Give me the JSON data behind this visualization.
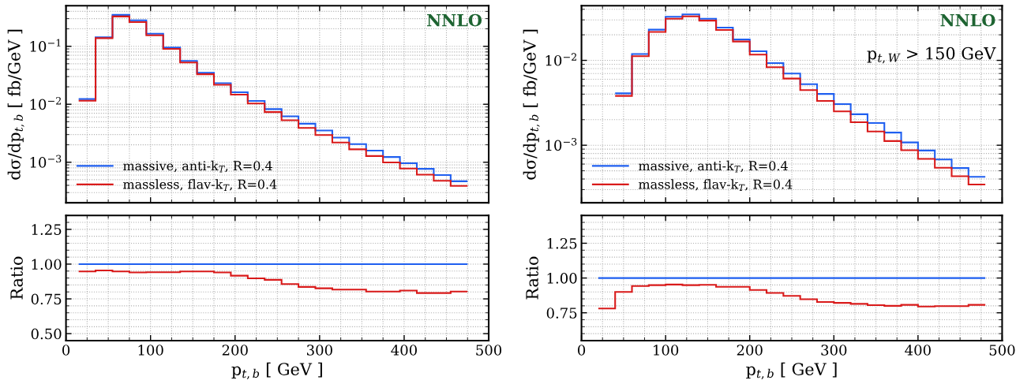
{
  "chart_data": [
    {
      "type": "histogram",
      "ylabel": "dσ/dp$_{t,b}$ [ fb/GeV ]",
      "annotations": [
        "NNLO"
      ],
      "log": "y",
      "grid": true,
      "legend": "bottom left",
      "tick_labels": "y",
      "bins": [
        15,
        35,
        55,
        75,
        95,
        115,
        135,
        155,
        175,
        195,
        215,
        235,
        255,
        275,
        295,
        315,
        335,
        355,
        375,
        395,
        415,
        435,
        455,
        475
      ],
      "xlim": [
        0,
        500
      ],
      "xticks": [
        0,
        100,
        200,
        300,
        400,
        500
      ],
      "ylim": [
        0.0002,
        0.5
      ],
      "yticks": [
        {
          "value": 0.001,
          "label": "10$^{−3}$"
        },
        {
          "value": 0.01,
          "label": "10$^{−2}$"
        },
        {
          "value": 0.1,
          "label": "10$^{−1}$"
        }
      ],
      "series": [
        {
          "name": "massive, anti-k$_{T}$, R=0.4",
          "color": "#1f5ff0",
          "values": [
            0.0123,
            0.143,
            0.348,
            0.28,
            0.165,
            0.095,
            0.056,
            0.0348,
            0.0231,
            0.0161,
            0.0114,
            0.00824,
            0.0062,
            0.00462,
            0.00352,
            0.00266,
            0.00206,
            0.00159,
            0.00123,
            0.00096,
            0.00077,
            0.0006,
            0.00047
          ]
        },
        {
          "name": "massless, flav-k$_{T}$, R=0.4",
          "color": "#d91a1a",
          "values": [
            0.0115,
            0.138,
            0.327,
            0.262,
            0.155,
            0.09,
            0.0526,
            0.033,
            0.0217,
            0.0147,
            0.0103,
            0.00734,
            0.0053,
            0.0039,
            0.00294,
            0.00219,
            0.00167,
            0.00128,
            0.00099,
            0.00078,
            0.00061,
            0.00048,
            0.00039
          ]
        }
      ]
    },
    {
      "type": "histogram",
      "ylabel": "dσ/dp$_{t,b}$ [ fb/GeV ]",
      "annotations": [
        "NNLO",
        "p$_{t,W}$ > 150 GeV"
      ],
      "log": "y",
      "grid": true,
      "legend": "bottom left",
      "tick_labels": "y",
      "bins": [
        40,
        60,
        80,
        100,
        120,
        140,
        160,
        180,
        200,
        220,
        240,
        260,
        280,
        300,
        320,
        340,
        360,
        380,
        400,
        420,
        440,
        460,
        480
      ],
      "xlim": [
        0,
        500
      ],
      "xticks": [
        0,
        100,
        200,
        300,
        400,
        500
      ],
      "ylim": [
        0.00021,
        0.044
      ],
      "yticks": [
        {
          "value": 0.001,
          "label": "10$^{−3}$"
        },
        {
          "value": 0.01,
          "label": "10$^{−2}$"
        }
      ],
      "series": [
        {
          "name": "massive, anti-k$_{T}$, R=0.4",
          "color": "#1f5ff0",
          "values": [
            0.00409,
            0.0119,
            0.023,
            0.0327,
            0.0348,
            0.031,
            0.0243,
            0.0176,
            0.0128,
            0.0093,
            0.007,
            0.00524,
            0.00402,
            0.00305,
            0.00232,
            0.00183,
            0.00141,
            0.00108,
            0.000867,
            0.00068,
            0.000538,
            0.000424
          ]
        },
        {
          "name": "massless, flav-k$_{T}$, R=0.4",
          "color": "#d91a1a",
          "values": [
            0.00381,
            0.0112,
            0.0216,
            0.031,
            0.033,
            0.0294,
            0.0228,
            0.0167,
            0.0117,
            0.0083,
            0.0061,
            0.00447,
            0.00333,
            0.00251,
            0.00187,
            0.00145,
            0.00112,
            0.000875,
            0.00069,
            0.000543,
            0.000431,
            0.000345
          ]
        }
      ]
    },
    {
      "type": "histogram",
      "xlabel": "p$_{t,b}$ [ GeV ]",
      "ylabel": "Ratio",
      "grid": true,
      "bins": [
        15,
        35,
        55,
        75,
        95,
        115,
        135,
        155,
        175,
        195,
        215,
        235,
        255,
        275,
        295,
        315,
        335,
        355,
        375,
        395,
        415,
        435,
        455,
        475
      ],
      "xlim": [
        0,
        500
      ],
      "xticks": [
        0,
        100,
        200,
        300,
        400,
        500
      ],
      "ylim": [
        0.45,
        1.35
      ],
      "yticks": [
        {
          "value": 0.5,
          "label": "0.50"
        },
        {
          "value": 0.75,
          "label": "0.75"
        },
        {
          "value": 1.0,
          "label": "1.00"
        },
        {
          "value": 1.25,
          "label": "1.25"
        }
      ],
      "series": [
        {
          "color": "#1f5ff0",
          "values": [
            1,
            1,
            1,
            1,
            1,
            1,
            1,
            1,
            1,
            1,
            1,
            1,
            1,
            1,
            1,
            1,
            1,
            1,
            1,
            1,
            1,
            1,
            1
          ]
        },
        {
          "color": "#d91a1a",
          "values": [
            0.947,
            0.954,
            0.947,
            0.94,
            0.942,
            0.942,
            0.947,
            0.947,
            0.94,
            0.917,
            0.898,
            0.887,
            0.857,
            0.836,
            0.826,
            0.817,
            0.817,
            0.803,
            0.803,
            0.81,
            0.792,
            0.792,
            0.803
          ]
        }
      ]
    },
    {
      "type": "histogram",
      "xlabel": "p$_{t,b}$ [ GeV ]",
      "ylabel": "Ratio",
      "grid": true,
      "bins": [
        20,
        40,
        60,
        80,
        100,
        120,
        140,
        160,
        180,
        200,
        220,
        240,
        260,
        280,
        300,
        320,
        340,
        360,
        380,
        400,
        420,
        440,
        460,
        480
      ],
      "xlim": [
        0,
        500
      ],
      "xticks": [
        0,
        100,
        200,
        300,
        400,
        500
      ],
      "ylim": [
        0.55,
        1.45
      ],
      "yticks": [
        {
          "value": 0.75,
          "label": "0.75"
        },
        {
          "value": 1.0,
          "label": "1.00"
        },
        {
          "value": 1.25,
          "label": "1.25"
        }
      ],
      "series": [
        {
          "color": "#1f5ff0",
          "values": [
            1,
            1,
            1,
            1,
            1,
            1,
            1,
            1,
            1,
            1,
            1,
            1,
            1,
            1,
            1,
            1,
            1,
            1,
            1,
            1,
            1,
            1,
            1
          ]
        },
        {
          "color": "#d91a1a",
          "values": [
            0.781,
            0.9,
            0.942,
            0.949,
            0.953,
            0.949,
            0.951,
            0.937,
            0.937,
            0.914,
            0.893,
            0.872,
            0.847,
            0.828,
            0.821,
            0.814,
            0.805,
            0.8,
            0.807,
            0.795,
            0.798,
            0.798,
            0.807
          ]
        }
      ]
    }
  ]
}
